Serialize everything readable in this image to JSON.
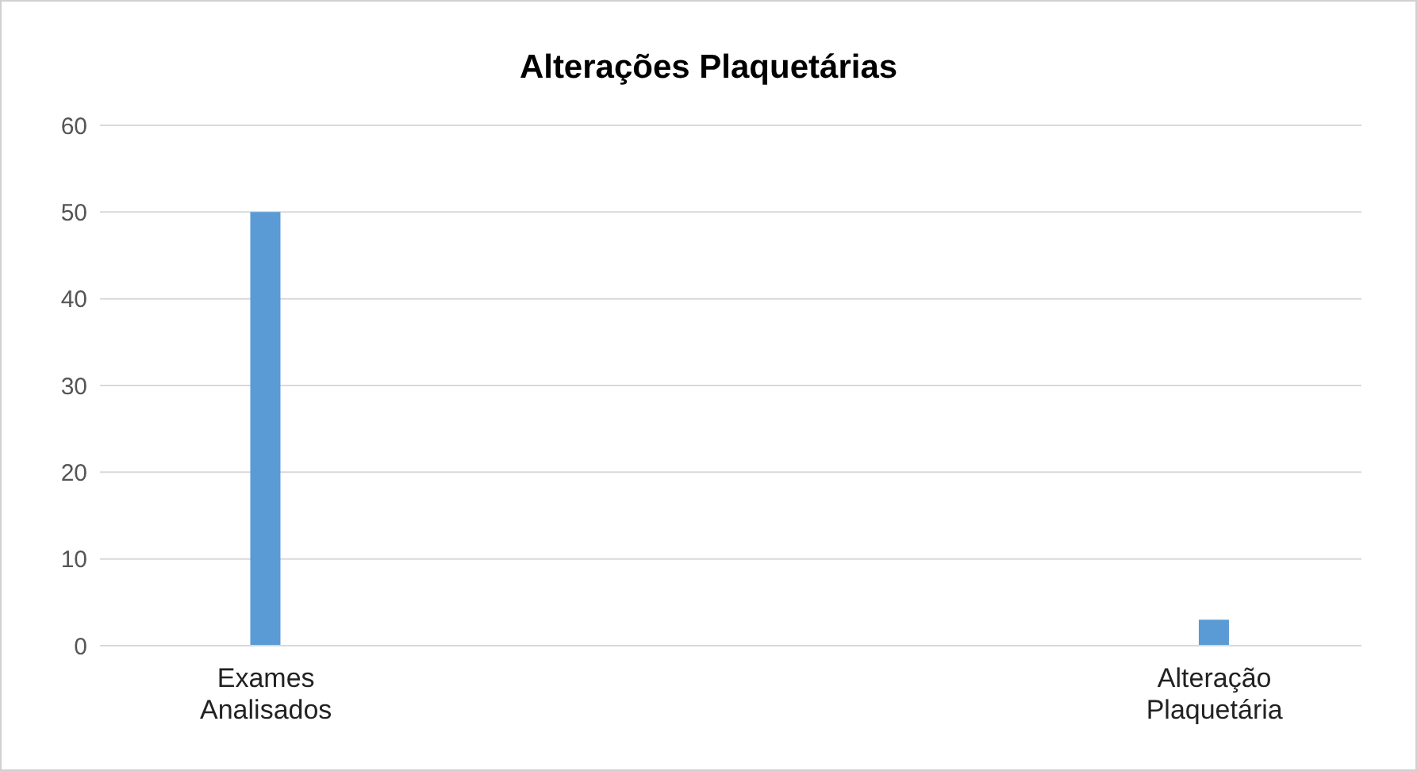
{
  "chart_data": {
    "type": "bar",
    "title": "Alterações Plaquetárias",
    "categories": [
      "Exames Analisados",
      "Alteração Plaquetária"
    ],
    "values": [
      50,
      3
    ],
    "color": "#5b9bd5",
    "ylim": [
      0,
      60
    ],
    "yticks": [
      0,
      10,
      20,
      30,
      40,
      50,
      60
    ],
    "grid": "y"
  }
}
